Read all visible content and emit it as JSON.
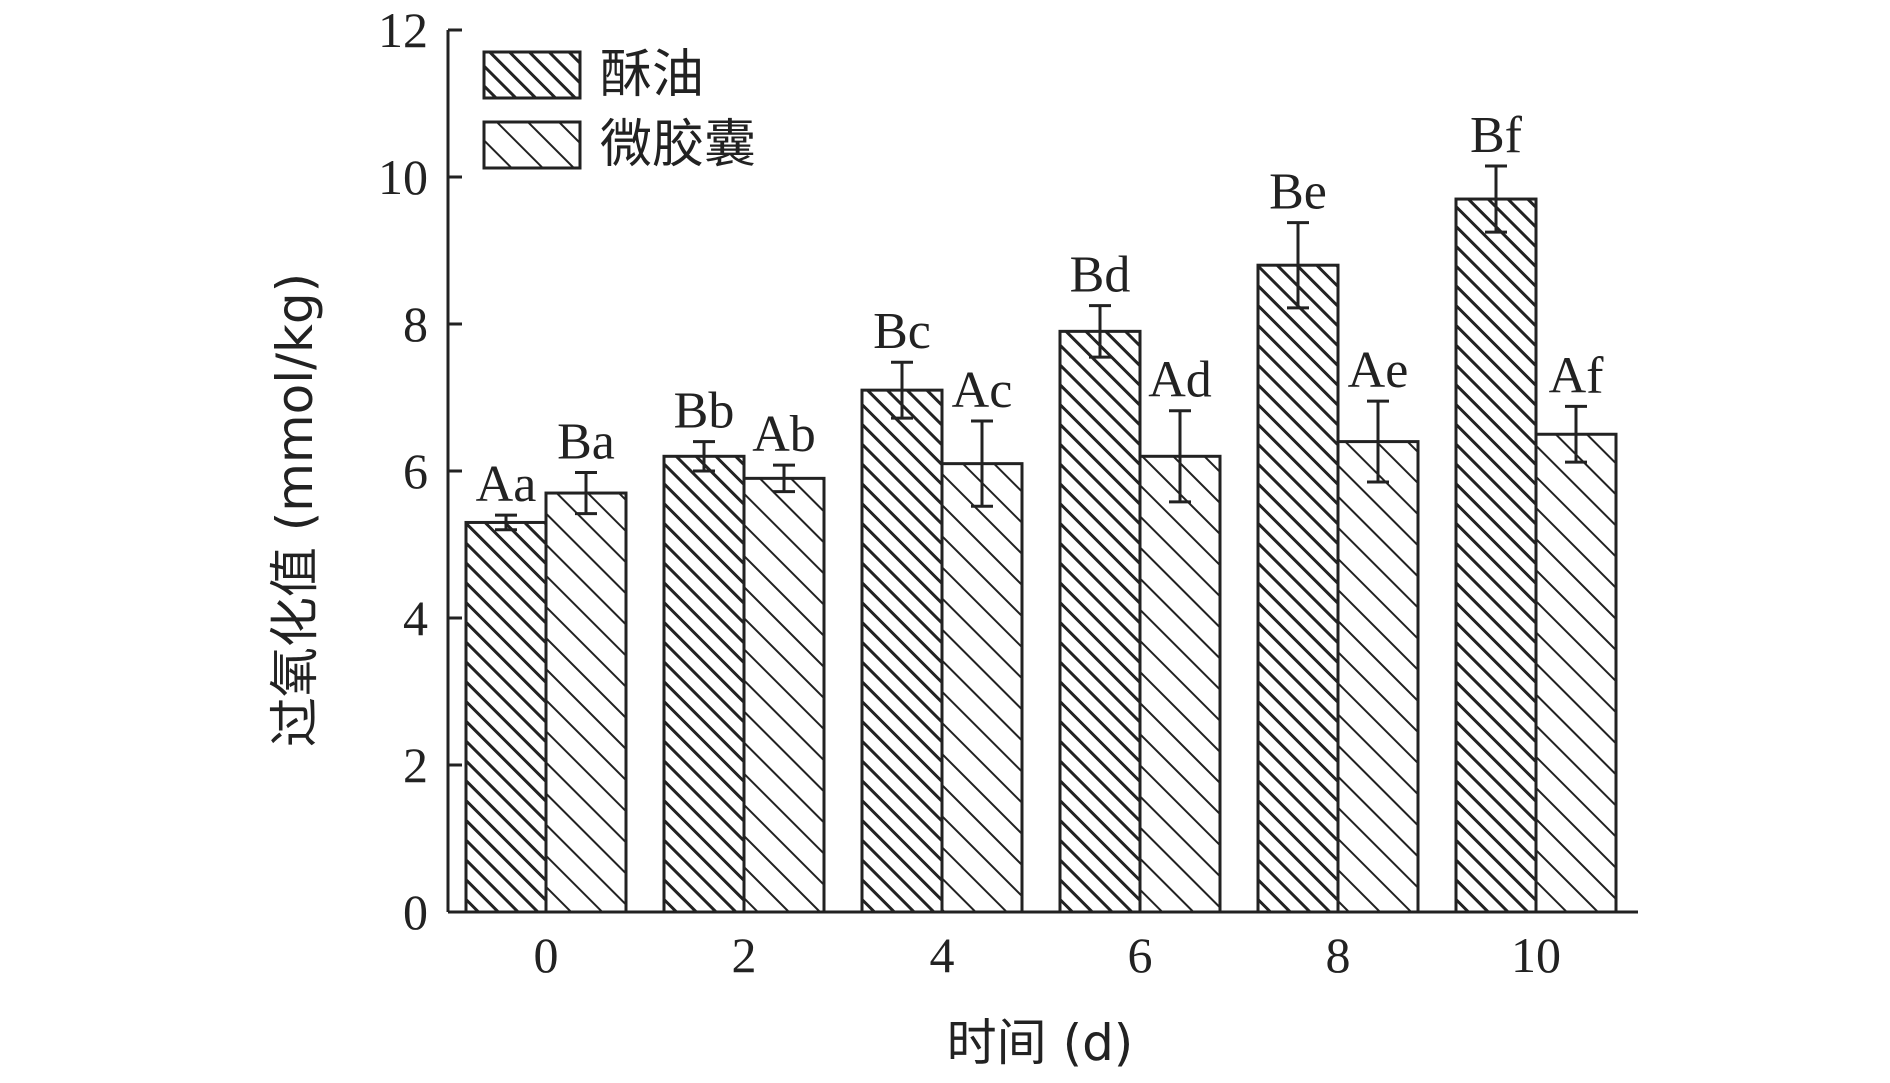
{
  "chart_data": {
    "type": "bar",
    "xlabel": "时间 (d)",
    "ylabel": "过氧化值 (mmol/kg)",
    "categories": [
      "0",
      "2",
      "4",
      "6",
      "8",
      "10"
    ],
    "ylim": [
      0,
      12
    ],
    "yticks": [
      "0",
      "2",
      "4",
      "6",
      "8",
      "10",
      "12"
    ],
    "legend_position": "top-left",
    "series": [
      {
        "name": "酥油",
        "values": [
          5.3,
          6.2,
          7.1,
          7.9,
          8.8,
          9.7
        ],
        "errors": [
          0.1,
          0.2,
          0.38,
          0.35,
          0.58,
          0.45
        ],
        "labels": [
          "Aa",
          "Bb",
          "Bc",
          "Bd",
          "Be",
          "Bf"
        ],
        "pattern": "dense-hatch"
      },
      {
        "name": "微胶囊",
        "values": [
          5.7,
          5.9,
          6.1,
          6.2,
          6.4,
          6.5
        ],
        "errors": [
          0.28,
          0.18,
          0.58,
          0.62,
          0.55,
          0.38
        ],
        "labels": [
          "Ba",
          "Ab",
          "Ac",
          "Ad",
          "Ae",
          "Af"
        ],
        "pattern": "sparse-hatch"
      }
    ]
  }
}
